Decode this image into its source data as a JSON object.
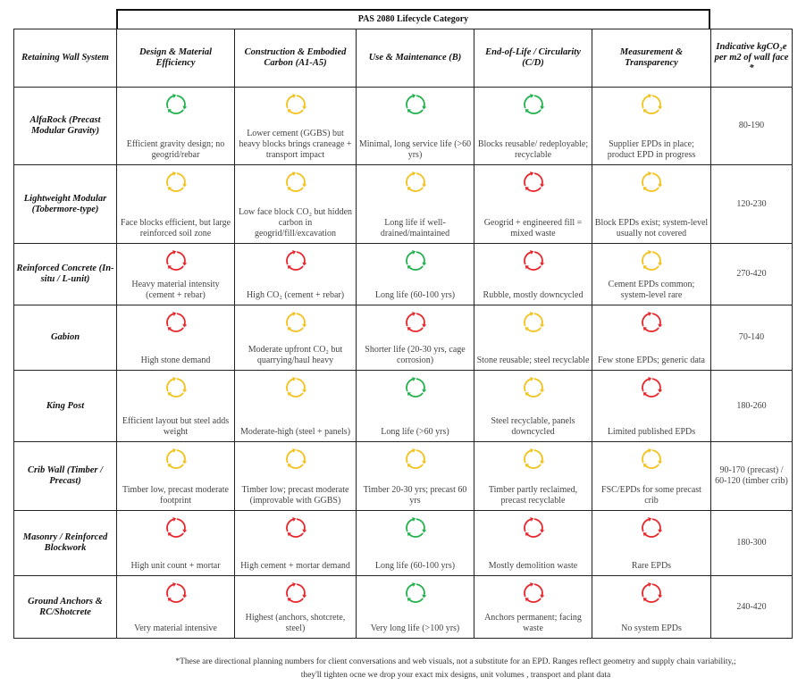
{
  "title": "PAS 2080 Lifecycle Category",
  "colors": {
    "green": "#22b14c",
    "amber": "#f2c21b",
    "red": "#e6262b"
  },
  "status_icon": "recycle-circular-arrows-icon",
  "headers": [
    "Retaining Wall System",
    "Design & Material Efficiency",
    "Construction & Embodied Carbon (A1-A5)",
    "Use & Maintenance (B)",
    "End-of-Life / Circularity (C/D)",
    "Measurement & Transparency",
    "Indicative kgCO₂e per m2 of wall face *"
  ],
  "rows": [
    {
      "system": "AlfaRock (Precast Modular Gravity)",
      "value": "80-190",
      "cells": [
        {
          "status": "green",
          "text": "Efficient gravity design; no geogrid/rebar"
        },
        {
          "status": "amber",
          "text": "Lower cement (GGBS) but heavy blocks brings craneage + transport impact"
        },
        {
          "status": "green",
          "text": "Minimal, long service life (>60 yrs)"
        },
        {
          "status": "green",
          "text": "Blocks reusable/ redeployable; recyclable"
        },
        {
          "status": "amber",
          "text": "Supplier EPDs in place; product EPD in progress"
        }
      ]
    },
    {
      "system": "Lightweight Modular (Tobermore-type)",
      "value": "120-230",
      "cells": [
        {
          "status": "amber",
          "text": "Face blocks efficient, but large reinforced soil zone"
        },
        {
          "status": "amber",
          "text": "Low face block CO₂ but hidden carbon in geogrid/fill/excavation"
        },
        {
          "status": "amber",
          "text": "Long life if well-drained/maintained"
        },
        {
          "status": "red",
          "text": "Geogrid + engineered fill = mixed waste"
        },
        {
          "status": "amber",
          "text": "Block EPDs exist; system-level usually not covered"
        }
      ]
    },
    {
      "system": "Reinforced Concrete (In-situ / L-unit)",
      "value": "270-420",
      "cells": [
        {
          "status": "red",
          "text": "Heavy material intensity (cement + rebar)"
        },
        {
          "status": "red",
          "text": "High CO₂ (cement + rebar)"
        },
        {
          "status": "green",
          "text": "Long life (60-100 yrs)"
        },
        {
          "status": "red",
          "text": "Rubble, mostly downcycled"
        },
        {
          "status": "amber",
          "text": "Cement EPDs common; system-level rare"
        }
      ]
    },
    {
      "system": "Gabion",
      "value": "70-140",
      "cells": [
        {
          "status": "red",
          "text": "High stone demand"
        },
        {
          "status": "amber",
          "text": "Moderate upfront CO₂ but quarrying/haul heavy"
        },
        {
          "status": "red",
          "text": "Shorter life (20-30 yrs, cage corrosion)"
        },
        {
          "status": "amber",
          "text": "Stone reusable; steel recyclable"
        },
        {
          "status": "red",
          "text": "Few stone EPDs; generic data"
        }
      ]
    },
    {
      "system": "King Post",
      "value": "180-260",
      "cells": [
        {
          "status": "amber",
          "text": "Efficient layout but steel adds weight"
        },
        {
          "status": "amber",
          "text": "Moderate-high (steel + panels)"
        },
        {
          "status": "green",
          "text": "Long life (>60 yrs)"
        },
        {
          "status": "amber",
          "text": "Steel recyclable, panels downcycled"
        },
        {
          "status": "red",
          "text": "Limited published EPDs"
        }
      ]
    },
    {
      "system": "Crib Wall (Timber / Precast)",
      "value": "90-170 (precast) / 60-120 (timber crib)",
      "cells": [
        {
          "status": "amber",
          "text": "Timber low, precast moderate footprint"
        },
        {
          "status": "amber",
          "text": "Timber low; precast moderate (improvable with GGBS)"
        },
        {
          "status": "amber",
          "text": "Timber 20-30 yrs; precast 60 yrs"
        },
        {
          "status": "amber",
          "text": "Timber partly reclaimed, precast recyclable"
        },
        {
          "status": "amber",
          "text": "FSC/EPDs for some precast crib"
        }
      ]
    },
    {
      "system": "Masonry / Reinforced Blockwork",
      "value": "180-300",
      "cells": [
        {
          "status": "red",
          "text": "High unit count + mortar"
        },
        {
          "status": "red",
          "text": "High cement + mortar demand"
        },
        {
          "status": "green",
          "text": "Long life (60-100 yrs)"
        },
        {
          "status": "red",
          "text": "Mostly demolition waste"
        },
        {
          "status": "red",
          "text": "Rare EPDs"
        }
      ]
    },
    {
      "system": "Ground Anchors & RC/Shotcrete",
      "value": "240-420",
      "cells": [
        {
          "status": "red",
          "text": "Very material intensive"
        },
        {
          "status": "red",
          "text": "Highest (anchors, shotcrete, steel)"
        },
        {
          "status": "green",
          "text": "Very long life (>100 yrs)"
        },
        {
          "status": "red",
          "text": "Anchors permanent; facing waste"
        },
        {
          "status": "red",
          "text": "No system EPDs"
        }
      ]
    }
  ],
  "footnote": [
    "*These are directional planning numbers for client conversations and web visuals, not a substitute for an EPD. Ranges reflect geometry and supply chain variability,;",
    "they'll tighten ocne we drop your exact mix designs, unit volumes , transport and plant data"
  ]
}
